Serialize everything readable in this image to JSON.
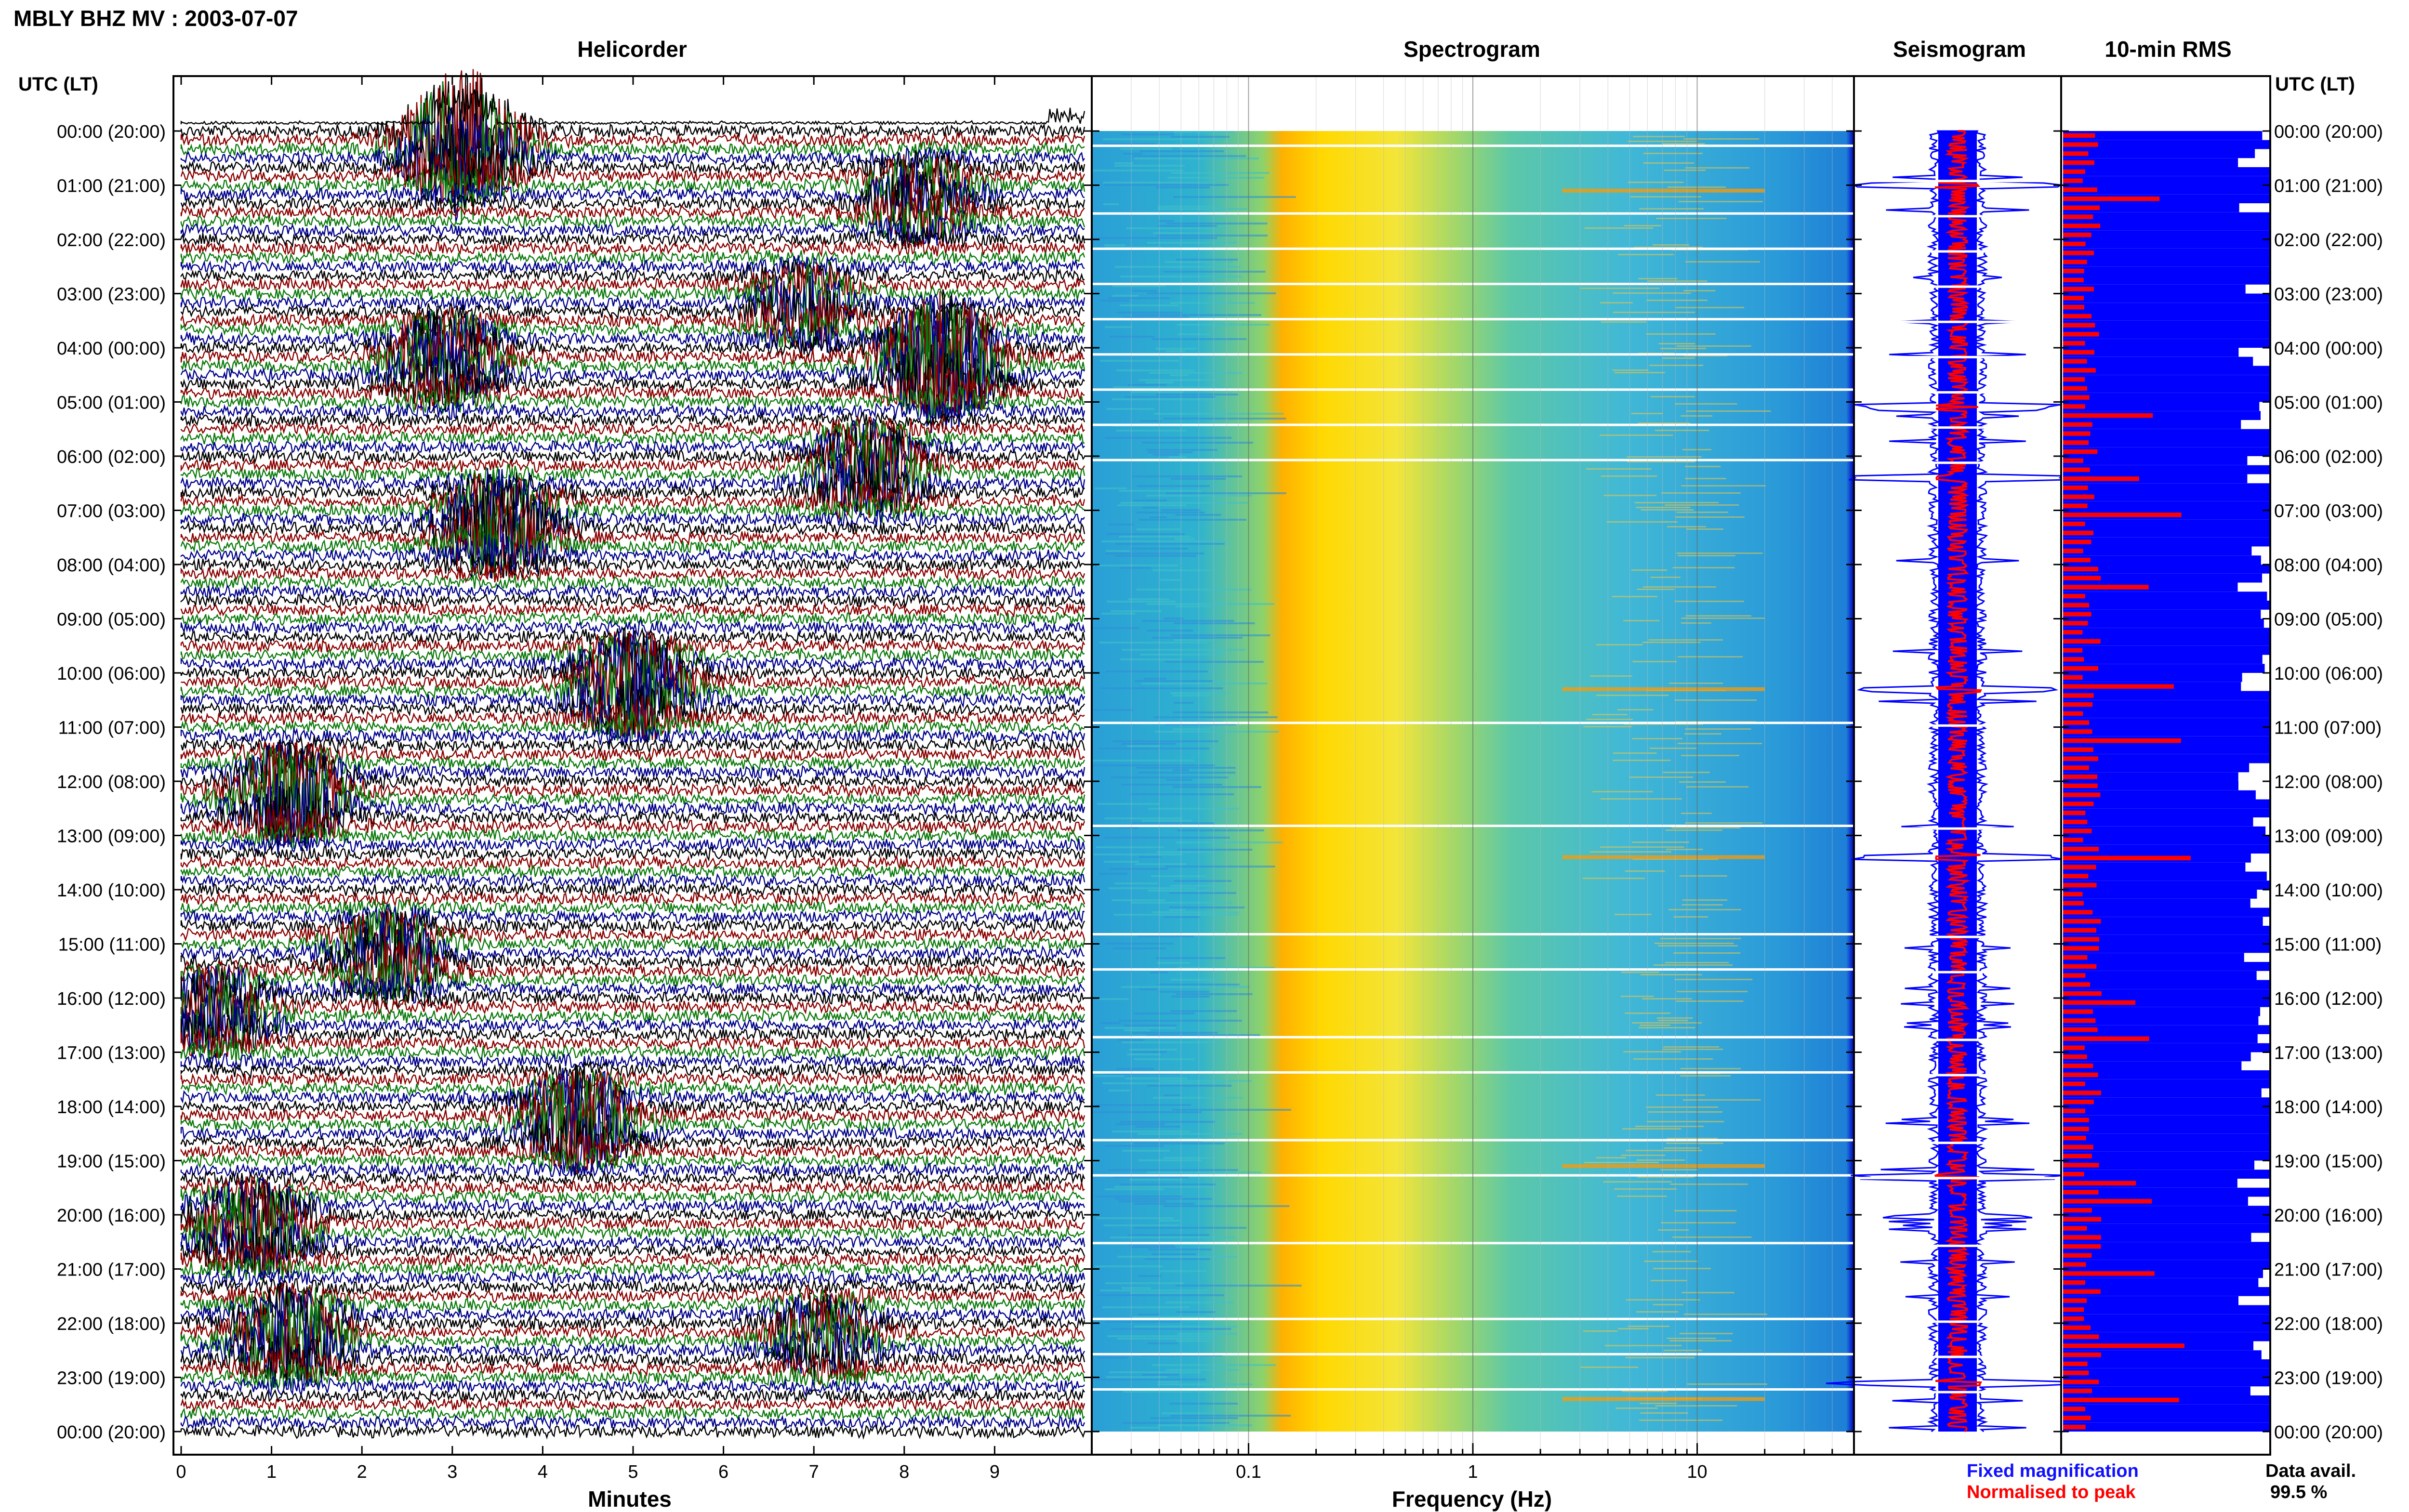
{
  "header": {
    "title": "MBLY BHZ MV : 2003-07-07"
  },
  "panels": {
    "helicorder": "Helicorder",
    "spectrogram": "Spectrogram",
    "seismogram": "Seismogram",
    "rms": "10-min RMS"
  },
  "time_axis": {
    "label": "UTC (LT)",
    "ticks": [
      "00:00 (20:00)",
      "01:00 (21:00)",
      "02:00 (22:00)",
      "03:00 (23:00)",
      "04:00 (00:00)",
      "05:00 (01:00)",
      "06:00 (02:00)",
      "07:00 (03:00)",
      "08:00 (04:00)",
      "09:00 (05:00)",
      "10:00 (06:00)",
      "11:00 (07:00)",
      "12:00 (08:00)",
      "13:00 (09:00)",
      "14:00 (10:00)",
      "15:00 (11:00)",
      "16:00 (12:00)",
      "17:00 (13:00)",
      "18:00 (14:00)",
      "19:00 (15:00)",
      "20:00 (16:00)",
      "21:00 (17:00)",
      "22:00 (18:00)",
      "23:00 (19:00)",
      "00:00 (20:00)"
    ]
  },
  "helicorder_axis": {
    "label": "Minutes",
    "ticks": [
      "0",
      "1",
      "2",
      "3",
      "4",
      "5",
      "6",
      "7",
      "8",
      "9"
    ],
    "trace_colors": [
      "#000000",
      "#8b0000",
      "#0b7a0b",
      "#00008b"
    ]
  },
  "spectrogram_axis": {
    "label": "Frequency (Hz)",
    "ticks": [
      "0.1",
      "1",
      "10"
    ],
    "scale": "log",
    "range_hz": [
      0.02,
      50
    ]
  },
  "legend": {
    "fixed": {
      "text": "Fixed magnification",
      "color": "#1010ff"
    },
    "normalised": {
      "text": "Normalised to peak",
      "color": "#ff0000"
    }
  },
  "data_avail": {
    "label": "Data avail.",
    "value": "99.5 %"
  },
  "colors": {
    "blue": "#0000ff",
    "red": "#ff0000",
    "spec_low": "#2aa9d8",
    "spec_high": "#ffd200"
  },
  "chart_data": [
    {
      "type": "line",
      "title": "Helicorder",
      "xlabel": "Minutes",
      "xlim": [
        0,
        10
      ],
      "y_ticks": [
        "00:00 (20:00)",
        "01:00 (21:00)",
        "02:00 (22:00)",
        "03:00 (23:00)",
        "04:00 (00:00)",
        "05:00 (01:00)",
        "06:00 (02:00)",
        "07:00 (03:00)",
        "08:00 (04:00)",
        "09:00 (05:00)",
        "10:00 (06:00)",
        "11:00 (07:00)",
        "12:00 (08:00)",
        "13:00 (09:00)",
        "14:00 (10:00)",
        "15:00 (11:00)",
        "16:00 (12:00)",
        "17:00 (13:00)",
        "18:00 (14:00)",
        "19:00 (15:00)",
        "20:00 (16:00)",
        "21:00 (17:00)",
        "22:00 (18:00)",
        "23:00 (19:00)",
        "00:00 (20:00)"
      ],
      "events": [
        {
          "hour": 0,
          "minute": 3.1,
          "amplitude": 1.0
        },
        {
          "hour": 1,
          "minute": 8.2,
          "amplitude": 0.45
        },
        {
          "hour": 3,
          "minute": 6.9,
          "amplitude": 0.4
        },
        {
          "hour": 4,
          "minute": 8.4,
          "amplitude": 0.9
        },
        {
          "hour": 4,
          "minute": 2.9,
          "amplitude": 0.6
        },
        {
          "hour": 6,
          "minute": 7.6,
          "amplitude": 0.55
        },
        {
          "hour": 7,
          "minute": 3.5,
          "amplitude": 0.7
        },
        {
          "hour": 10,
          "minute": 5.0,
          "amplitude": 0.7
        },
        {
          "hour": 12,
          "minute": 1.2,
          "amplitude": 0.65
        },
        {
          "hour": 15,
          "minute": 2.3,
          "amplitude": 0.5
        },
        {
          "hour": 16,
          "minute": 0.4,
          "amplitude": 0.45
        },
        {
          "hour": 18,
          "minute": 4.4,
          "amplitude": 0.6
        },
        {
          "hour": 20,
          "minute": 0.8,
          "amplitude": 0.55
        },
        {
          "hour": 22,
          "minute": 1.2,
          "amplitude": 0.6
        },
        {
          "hour": 22,
          "minute": 7.1,
          "amplitude": 0.4
        }
      ]
    },
    {
      "type": "heatmap",
      "title": "Spectrogram",
      "xlabel": "Frequency (Hz)",
      "x_scale": "log",
      "xlim_hz": [
        0.02,
        50
      ],
      "x_ticks": [
        "0.1",
        "1",
        "10"
      ],
      "peak_band_hz": [
        0.2,
        0.8
      ],
      "notable_hours": [
        1.1,
        10.3,
        13.4,
        19.1,
        23.4
      ]
    },
    {
      "type": "line",
      "title": "Seismogram",
      "series": [
        {
          "name": "Fixed magnification",
          "color": "#0000ff"
        },
        {
          "name": "Normalised to peak",
          "color": "#ff0000"
        }
      ],
      "spike_hours": [
        1.0,
        5.1,
        6.4,
        10.3,
        13.4,
        19.3,
        23.1
      ]
    },
    {
      "type": "bar",
      "title": "10-min RMS",
      "series": [
        {
          "name": "Fixed magnification",
          "color": "#0000ff"
        },
        {
          "name": "Normalised to peak",
          "color": "#ff0000"
        }
      ],
      "rms_spike_hours": [
        1.1,
        5.1,
        6.3,
        7.0,
        8.4,
        10.2,
        11.2,
        13.4,
        16.0,
        16.7,
        19.3,
        19.6,
        21.0,
        22.4,
        23.4
      ],
      "data_available_percent": 99.5
    }
  ]
}
